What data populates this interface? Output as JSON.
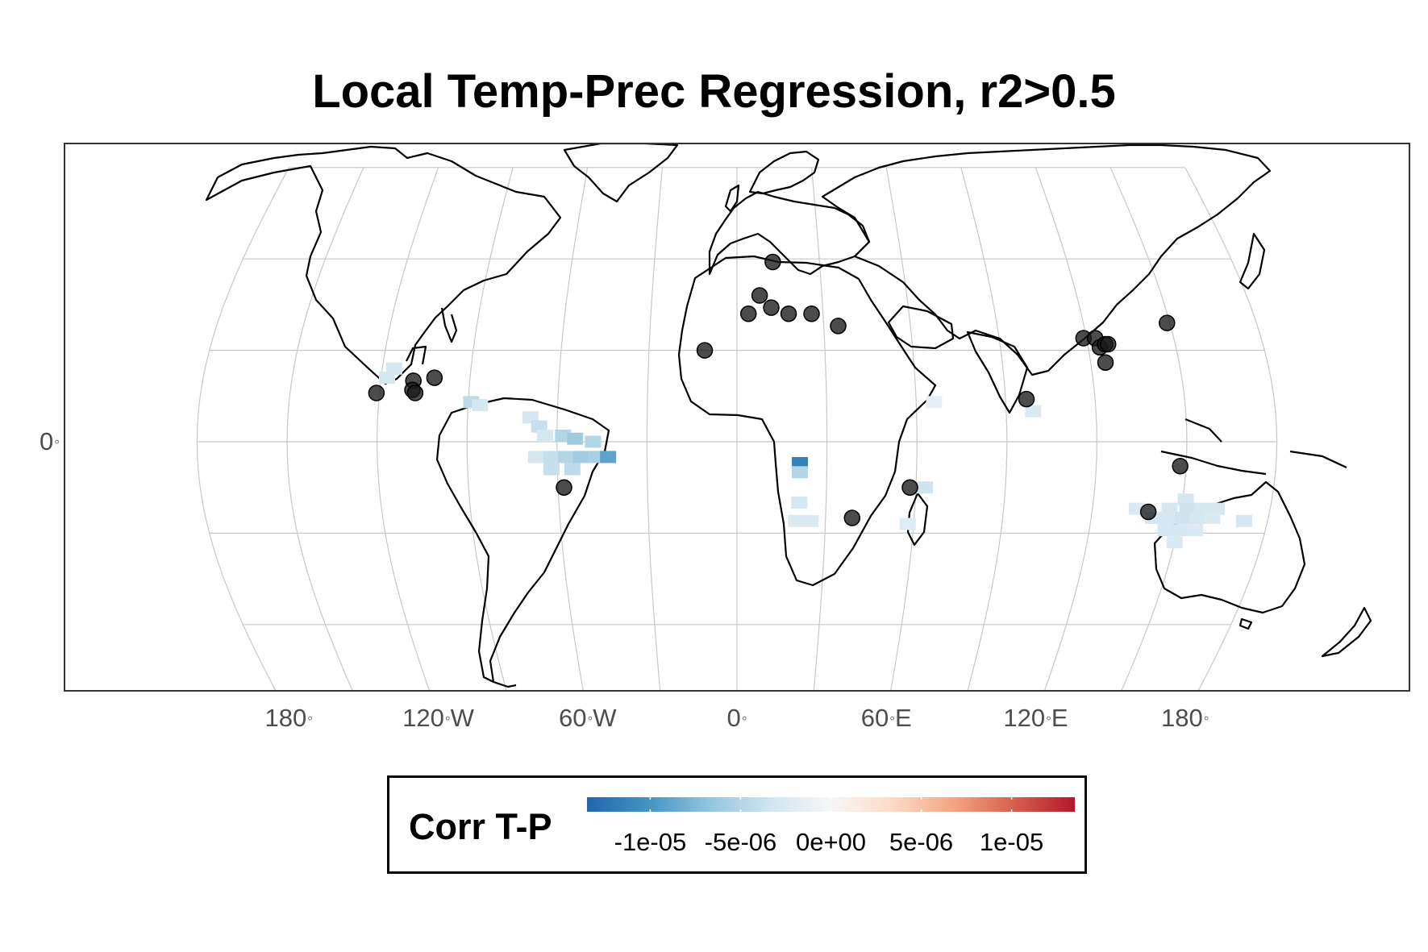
{
  "title": "Local Temp-Prec Regression, r2>0.5",
  "x_axis_ticks": [
    {
      "value": "180",
      "lon": -180
    },
    {
      "value": "120",
      "suffix": "W",
      "lon": -120
    },
    {
      "value": "60",
      "suffix": "W",
      "lon": -60
    },
    {
      "value": "0",
      "lon": 0
    },
    {
      "value": "60",
      "suffix": "E",
      "lon": 60
    },
    {
      "value": "120",
      "suffix": "E",
      "lon": 120
    },
    {
      "value": "180",
      "lon": 180
    }
  ],
  "y_axis_ticks": [
    {
      "value": "0",
      "lat": 0
    }
  ],
  "degree_symbol": "◦",
  "legend": {
    "title": "Corr T-P",
    "ticks": [
      "-1e-05",
      "-5e-06",
      "0e+00",
      "5e-06",
      "1e-05"
    ],
    "tick_values": [
      -1e-05,
      -5e-06,
      0,
      5e-06,
      1e-05
    ],
    "range": [
      -1.35e-05,
      1.35e-05
    ],
    "colors": [
      "#2166ac",
      "#4393c3",
      "#92c5de",
      "#d1e5f0",
      "#f7f7f7",
      "#fddbc7",
      "#f4a582",
      "#d6604d",
      "#b2182b"
    ]
  },
  "map": {
    "projection": "Robinson-like (central meridian 0)",
    "lon_range": [
      -225,
      225
    ],
    "lat_range": [
      -90,
      90
    ],
    "graticule_step": 30,
    "grid_color": "#c8c8c8"
  },
  "cells": [
    {
      "lon": -116,
      "lat": 24,
      "v": -3e-06
    },
    {
      "lon": -118,
      "lat": 21,
      "v": -3e-06
    },
    {
      "lon": -89,
      "lat": 13,
      "v": -4.5e-06
    },
    {
      "lon": -86,
      "lat": 12,
      "v": -3e-06
    },
    {
      "lon": -69,
      "lat": 8,
      "v": -3e-06
    },
    {
      "lon": -66,
      "lat": 5,
      "v": -4e-06
    },
    {
      "lon": -64,
      "lat": 2,
      "v": -3e-06
    },
    {
      "lon": -58,
      "lat": 2,
      "v": -5e-06
    },
    {
      "lon": -54,
      "lat": 1,
      "v": -6e-06
    },
    {
      "lon": -48,
      "lat": 0,
      "v": -5e-06
    },
    {
      "lon": -67,
      "lat": -5,
      "v": -3e-06
    },
    {
      "lon": -62,
      "lat": -5,
      "v": -4e-06
    },
    {
      "lon": -57,
      "lat": -5,
      "v": -5e-06
    },
    {
      "lon": -52,
      "lat": -5,
      "v": -6e-06
    },
    {
      "lon": -47,
      "lat": -5,
      "v": -5.5e-06
    },
    {
      "lon": -43,
      "lat": -5,
      "v": -9e-06
    },
    {
      "lon": -62,
      "lat": -9,
      "v": -4e-06
    },
    {
      "lon": -55,
      "lat": -9,
      "v": -4.5e-06
    },
    {
      "lon": 21,
      "lat": -7,
      "v": -1.15e-05
    },
    {
      "lon": 21,
      "lat": -10,
      "v": -5e-06
    },
    {
      "lon": 21,
      "lat": -20,
      "v": -3e-06
    },
    {
      "lon": 25,
      "lat": -26,
      "v": -2.5e-06
    },
    {
      "lon": 20,
      "lat": -26,
      "v": -2.5e-06
    },
    {
      "lon": 63,
      "lat": -15,
      "v": -3.5e-06
    },
    {
      "lon": 58,
      "lat": -27,
      "v": -2e-06
    },
    {
      "lon": 99,
      "lat": 10,
      "v": -2.5e-06
    },
    {
      "lon": 66,
      "lat": 13,
      "v": -1.5e-06
    },
    {
      "lon": 151,
      "lat": -19,
      "v": -3e-06
    },
    {
      "lon": 146,
      "lat": -22,
      "v": -3e-06
    },
    {
      "lon": 152,
      "lat": -22,
      "v": -3.5e-06
    },
    {
      "lon": 157,
      "lat": -22,
      "v": -3e-06
    },
    {
      "lon": 162,
      "lat": -22,
      "v": -3e-06
    },
    {
      "lon": 135,
      "lat": -22,
      "v": -2.5e-06
    },
    {
      "lon": 141,
      "lat": -25,
      "v": -3e-06
    },
    {
      "lon": 146,
      "lat": -25,
      "v": -3e-06
    },
    {
      "lon": 151,
      "lat": -25,
      "v": -3.5e-06
    },
    {
      "lon": 156,
      "lat": -25,
      "v": -3e-06
    },
    {
      "lon": 161,
      "lat": -25,
      "v": -2.5e-06
    },
    {
      "lon": 172,
      "lat": -26,
      "v": -3e-06
    },
    {
      "lon": 146,
      "lat": -29,
      "v": -3e-06
    },
    {
      "lon": 151,
      "lat": -29,
      "v": -3e-06
    },
    {
      "lon": 156,
      "lat": -29,
      "v": -2.5e-06
    },
    {
      "lon": 150,
      "lat": -33,
      "v": -2.5e-06
    }
  ],
  "points": [
    {
      "lon": -121,
      "lat": 16
    },
    {
      "lon": -109,
      "lat": 20
    },
    {
      "lon": -109,
      "lat": 17
    },
    {
      "lon": -108,
      "lat": 16
    },
    {
      "lon": -102,
      "lat": 21
    },
    {
      "lon": -58,
      "lat": -15
    },
    {
      "lon": -11,
      "lat": 30
    },
    {
      "lon": 4,
      "lat": 42
    },
    {
      "lon": 8,
      "lat": 48
    },
    {
      "lon": 12,
      "lat": 44
    },
    {
      "lon": 18,
      "lat": 42
    },
    {
      "lon": 26,
      "lat": 42
    },
    {
      "lon": 35,
      "lat": 38
    },
    {
      "lon": 13,
      "lat": 59
    },
    {
      "lon": 58,
      "lat": -15
    },
    {
      "lon": 39,
      "lat": -25
    },
    {
      "lon": 97,
      "lat": 14
    },
    {
      "lon": 119,
      "lat": 34
    },
    {
      "lon": 123,
      "lat": 34
    },
    {
      "lon": 124,
      "lat": 31
    },
    {
      "lon": 126,
      "lat": 32
    },
    {
      "lon": 127,
      "lat": 32
    },
    {
      "lon": 125,
      "lat": 26
    },
    {
      "lon": 148,
      "lat": -8
    },
    {
      "lon": 139,
      "lat": -23
    },
    {
      "lon": 149,
      "lat": 39
    }
  ]
}
